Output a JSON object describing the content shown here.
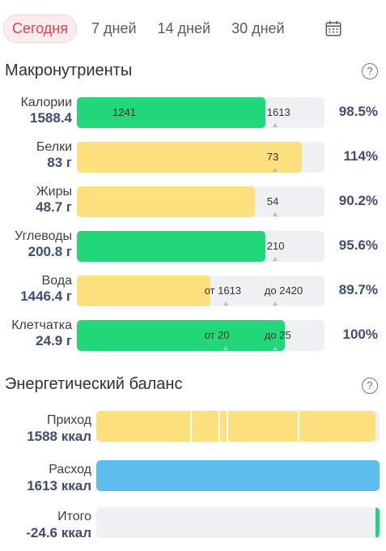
{
  "tabs": [
    {
      "label": "Сегодня",
      "active": true
    },
    {
      "label": "7 дней",
      "active": false
    },
    {
      "label": "14 дней",
      "active": false
    },
    {
      "label": "30 дней",
      "active": false
    }
  ],
  "icons": {
    "calendar": "calendar-icon",
    "help": "help-icon"
  },
  "colors": {
    "green": "#22d67a",
    "yellow": "#fde07e",
    "blue": "#5cbcea",
    "active_tab": "#e4424d"
  },
  "macros": {
    "title": "Макронутриенты",
    "help_symbol": "?",
    "rows": [
      {
        "name": "Калории",
        "value": "1588.4",
        "percent": "98.5%",
        "fill_fraction": 0.76,
        "color": "green",
        "label_a": "1241",
        "label_b": "1613",
        "target_fraction": 0.8
      },
      {
        "name": "Белки",
        "value": "83 г",
        "percent": "114%",
        "fill_fraction": 0.91,
        "color": "yellow",
        "label_a": "",
        "label_b": "73",
        "target_fraction": 0.8
      },
      {
        "name": "Жиры",
        "value": "48.7 г",
        "percent": "90.2%",
        "fill_fraction": 0.72,
        "color": "yellow",
        "label_a": "",
        "label_b": "54",
        "target_fraction": 0.8
      },
      {
        "name": "Углеводы",
        "value": "200.8 г",
        "percent": "95.6%",
        "fill_fraction": 0.76,
        "color": "green",
        "label_a": "",
        "label_b": "210",
        "target_fraction": 0.8
      },
      {
        "name": "Вода",
        "value": "1446.4 г",
        "percent": "89.7%",
        "fill_fraction": 0.54,
        "color": "yellow",
        "label_a": "от 1613",
        "label_b": "до 2420",
        "target_fraction": 0.6,
        "target2_fraction": 0.8
      },
      {
        "name": "Клетчатка",
        "value": "24.9 г",
        "percent": "100%",
        "fill_fraction": 0.84,
        "color": "green",
        "label_a": "от 20",
        "label_b": "до 25",
        "target_fraction": 0.6,
        "target2_fraction": 0.8
      }
    ]
  },
  "energy": {
    "title": "Энергетический баланс",
    "help_symbol": "?",
    "rows": [
      {
        "name": "Приход",
        "value": "1588 ккал",
        "fill_fraction": 0.985,
        "color": "yellow",
        "dividers": [
          0.33,
          0.43,
          0.46,
          0.71
        ]
      },
      {
        "name": "Расход",
        "value": "1613 ккал",
        "fill_fraction": 1.0,
        "color": "blue",
        "dividers": []
      },
      {
        "name": "Итого",
        "value": "-24.6 ккал",
        "fill_fraction": 0.015,
        "color": "green",
        "dividers": [],
        "align_right": true
      }
    ]
  }
}
